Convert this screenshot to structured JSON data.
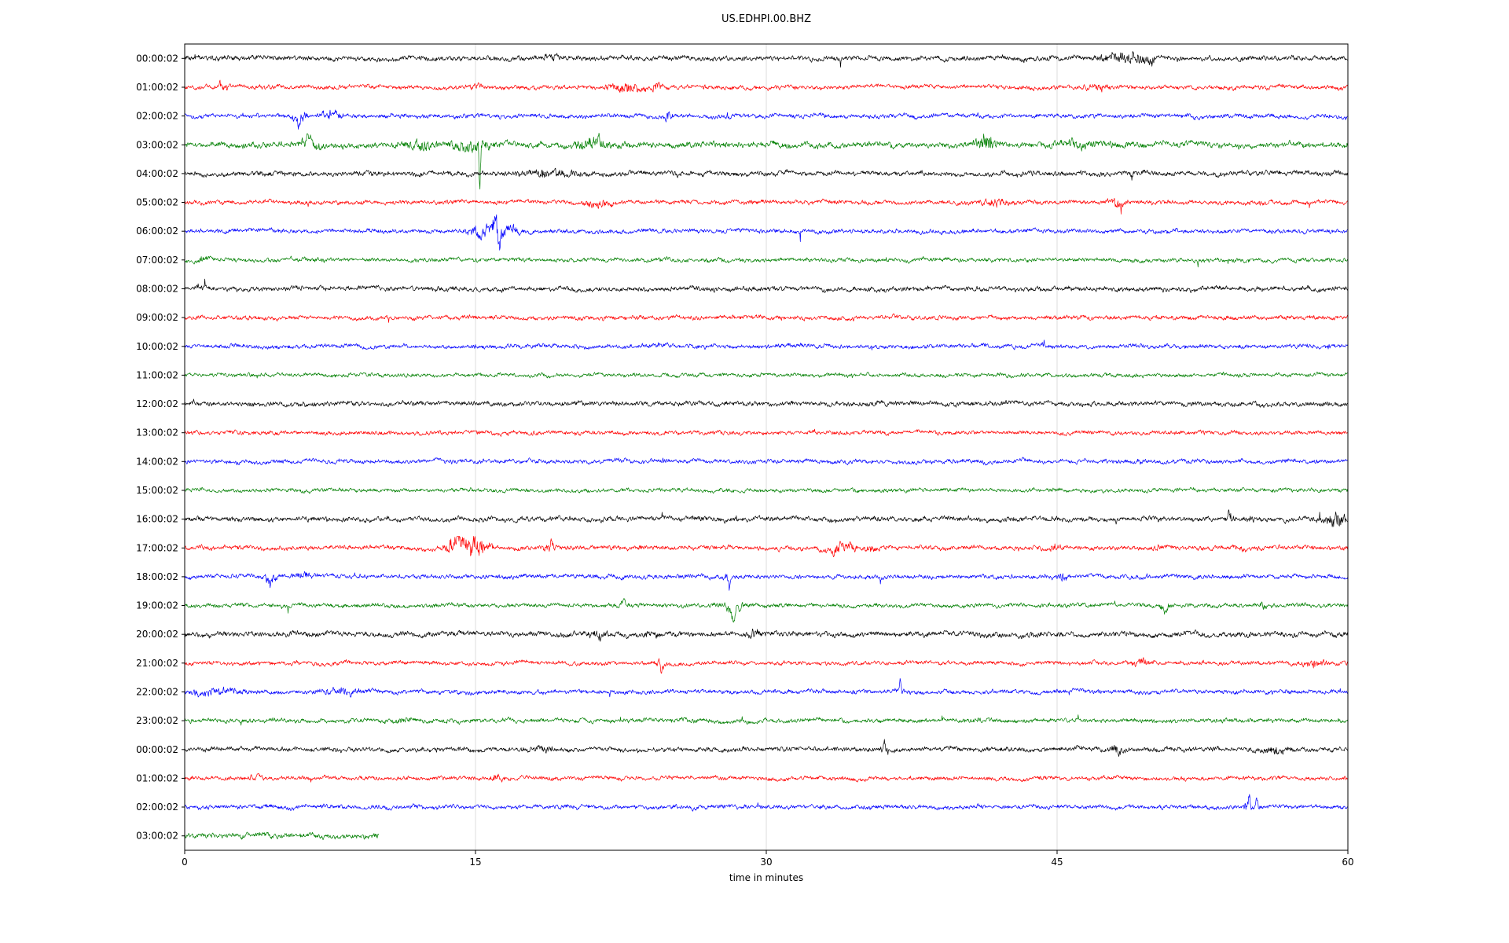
{
  "chart_data": {
    "type": "line",
    "title": "US.EDHPI.00.BHZ",
    "xlabel": "time in minutes",
    "xlim": [
      0,
      60
    ],
    "x_ticks": [
      0,
      15,
      30,
      45,
      60
    ],
    "grid": "vertical-at-interior-ticks",
    "legend": "none",
    "color_cycle": [
      "#000000",
      "#ff0000",
      "#0000ff",
      "#007f00"
    ],
    "rows": [
      {
        "label": "00:00:02",
        "color": "#000000",
        "end_min": 60,
        "base_amp": 1.15,
        "events": [
          {
            "t": 19.0,
            "dur": 0.5,
            "gain": 1.8
          },
          {
            "t": 48.4,
            "dur": 1.4,
            "gain": 3.2
          },
          {
            "t": 49.8,
            "dur": 0.6,
            "gain": 2.2
          }
        ]
      },
      {
        "label": "01:00:02",
        "color": "#ff0000",
        "end_min": 60,
        "base_amp": 1.0,
        "events": [
          {
            "t": 2.0,
            "dur": 0.35,
            "gain": 3.0
          },
          {
            "t": 15.0,
            "dur": 0.3,
            "gain": 2.6
          },
          {
            "t": 22.9,
            "dur": 1.2,
            "gain": 2.6
          },
          {
            "t": 24.3,
            "dur": 0.5,
            "gain": 2.4
          },
          {
            "t": 47.0,
            "dur": 0.8,
            "gain": 2.2
          }
        ]
      },
      {
        "label": "02:00:02",
        "color": "#0000ff",
        "end_min": 60,
        "base_amp": 1.0,
        "events": [
          {
            "t": 5.9,
            "dur": 0.5,
            "gain": 3.5,
            "pulse": -10
          },
          {
            "t": 7.6,
            "dur": 0.6,
            "gain": 2.6
          },
          {
            "t": 24.9,
            "dur": 0.3,
            "gain": 2.4
          }
        ]
      },
      {
        "label": "03:00:02",
        "color": "#007f00",
        "end_min": 60,
        "base_amp": 1.35,
        "events": [
          {
            "t": 6.4,
            "dur": 0.7,
            "gain": 2.8,
            "pulse": 8
          },
          {
            "t": 12.1,
            "dur": 0.9,
            "gain": 2.2
          },
          {
            "t": 14.6,
            "dur": 1.6,
            "gain": 2.4
          },
          {
            "t": 15.22,
            "dur": 0.2,
            "gain": 3.0,
            "pulse": -52
          },
          {
            "t": 21.0,
            "dur": 1.1,
            "gain": 2.8
          },
          {
            "t": 41.4,
            "dur": 0.7,
            "gain": 3.5,
            "pulse": 10
          },
          {
            "t": 46.0,
            "dur": 2.0,
            "gain": 1.6
          }
        ]
      },
      {
        "label": "04:00:02",
        "color": "#000000",
        "end_min": 60,
        "base_amp": 1.15,
        "events": [
          {
            "t": 18.6,
            "dur": 1.4,
            "gain": 2.2
          },
          {
            "t": 19.9,
            "dur": 0.7,
            "gain": 1.9
          }
        ]
      },
      {
        "label": "05:00:02",
        "color": "#ff0000",
        "end_min": 60,
        "base_amp": 1.0,
        "events": [
          {
            "t": 21.4,
            "dur": 0.8,
            "gain": 2.4
          },
          {
            "t": 41.9,
            "dur": 1.1,
            "gain": 2.2
          },
          {
            "t": 48.1,
            "dur": 0.6,
            "gain": 2.4
          }
        ]
      },
      {
        "label": "06:00:02",
        "color": "#0000ff",
        "end_min": 60,
        "base_amp": 1.0,
        "events": [
          {
            "t": 15.4,
            "dur": 1.0,
            "gain": 3.5
          },
          {
            "t": 16.05,
            "dur": 0.25,
            "gain": 4.0,
            "pulse": 12
          },
          {
            "t": 16.2,
            "dur": 0.3,
            "gain": 4.0,
            "pulse": -30
          },
          {
            "t": 16.8,
            "dur": 0.8,
            "gain": 2.5
          }
        ]
      },
      {
        "label": "07:00:02",
        "color": "#007f00",
        "end_min": 60,
        "base_amp": 0.95,
        "events": [
          {
            "t": 1.0,
            "dur": 0.5,
            "gain": 1.8
          }
        ]
      },
      {
        "label": "08:00:02",
        "color": "#000000",
        "end_min": 60,
        "base_amp": 1.1,
        "events": []
      },
      {
        "label": "09:00:02",
        "color": "#ff0000",
        "end_min": 60,
        "base_amp": 1.0,
        "events": []
      },
      {
        "label": "10:00:02",
        "color": "#0000ff",
        "end_min": 60,
        "base_amp": 1.0,
        "events": []
      },
      {
        "label": "11:00:02",
        "color": "#007f00",
        "end_min": 60,
        "base_amp": 0.9,
        "events": []
      },
      {
        "label": "12:00:02",
        "color": "#000000",
        "end_min": 60,
        "base_amp": 1.1,
        "events": []
      },
      {
        "label": "13:00:02",
        "color": "#ff0000",
        "end_min": 60,
        "base_amp": 0.95,
        "events": []
      },
      {
        "label": "14:00:02",
        "color": "#0000ff",
        "end_min": 60,
        "base_amp": 1.0,
        "events": []
      },
      {
        "label": "15:00:02",
        "color": "#007f00",
        "end_min": 60,
        "base_amp": 0.9,
        "events": []
      },
      {
        "label": "16:00:02",
        "color": "#000000",
        "end_min": 60,
        "base_amp": 1.15,
        "events": [
          {
            "t": 53.9,
            "dur": 0.3,
            "gain": 2.6,
            "pulse": 9
          },
          {
            "t": 54.9,
            "dur": 0.3,
            "gain": 2.0
          },
          {
            "t": 59.4,
            "dur": 0.7,
            "gain": 3.5
          }
        ]
      },
      {
        "label": "17:00:02",
        "color": "#ff0000",
        "end_min": 60,
        "base_amp": 1.05,
        "events": [
          {
            "t": 13.9,
            "dur": 0.5,
            "gain": 4.5
          },
          {
            "t": 14.9,
            "dur": 0.9,
            "gain": 5.5
          },
          {
            "t": 18.9,
            "dur": 0.4,
            "gain": 2.8
          },
          {
            "t": 33.9,
            "dur": 1.0,
            "gain": 2.8
          },
          {
            "t": 35.3,
            "dur": 0.5,
            "gain": 2.0
          },
          {
            "t": 44.9,
            "dur": 0.4,
            "gain": 2.0
          },
          {
            "t": 50.3,
            "dur": 0.3,
            "gain": 2.0
          },
          {
            "t": 54.6,
            "dur": 0.3,
            "gain": 1.9
          }
        ]
      },
      {
        "label": "18:00:02",
        "color": "#0000ff",
        "end_min": 60,
        "base_amp": 1.0,
        "events": [
          {
            "t": 4.4,
            "dur": 0.4,
            "gain": 3.0,
            "pulse": -9
          },
          {
            "t": 6.1,
            "dur": 0.8,
            "gain": 2.0
          },
          {
            "t": 28.1,
            "dur": 0.3,
            "gain": 2.8,
            "pulse": -8
          },
          {
            "t": 45.4,
            "dur": 0.5,
            "gain": 2.4
          }
        ]
      },
      {
        "label": "19:00:02",
        "color": "#007f00",
        "end_min": 60,
        "base_amp": 0.95,
        "events": [
          {
            "t": 22.6,
            "dur": 0.5,
            "gain": 1.9
          },
          {
            "t": 28.3,
            "dur": 0.7,
            "gain": 3.2,
            "pulse": -14
          },
          {
            "t": 50.6,
            "dur": 0.4,
            "gain": 2.4,
            "pulse": -7
          },
          {
            "t": 55.6,
            "dur": 0.3,
            "gain": 1.9
          }
        ]
      },
      {
        "label": "20:00:02",
        "color": "#000000",
        "end_min": 60,
        "base_amp": 1.2,
        "events": [
          {
            "t": 21.3,
            "dur": 0.6,
            "gain": 2.2
          },
          {
            "t": 24.1,
            "dur": 0.5,
            "gain": 2.0
          },
          {
            "t": 29.3,
            "dur": 0.5,
            "gain": 2.2
          }
        ]
      },
      {
        "label": "21:00:02",
        "color": "#ff0000",
        "end_min": 60,
        "base_amp": 0.95,
        "events": [
          {
            "t": 24.6,
            "dur": 0.3,
            "gain": 2.8,
            "pulse": -8
          },
          {
            "t": 49.4,
            "dur": 0.6,
            "gain": 2.2
          },
          {
            "t": 58.3,
            "dur": 0.8,
            "gain": 2.4
          }
        ]
      },
      {
        "label": "22:00:02",
        "color": "#0000ff",
        "end_min": 60,
        "base_amp": 1.0,
        "events": [
          {
            "t": 1.6,
            "dur": 2.4,
            "gain": 2.0
          },
          {
            "t": 8.1,
            "dur": 1.6,
            "gain": 1.9
          },
          {
            "t": 36.9,
            "dur": 0.25,
            "gain": 2.6,
            "pulse": 14
          }
        ]
      },
      {
        "label": "23:00:02",
        "color": "#007f00",
        "end_min": 60,
        "base_amp": 1.0,
        "events": [
          {
            "t": 11.0,
            "dur": 1.0,
            "gain": 1.5
          }
        ]
      },
      {
        "label": "00:00:02",
        "color": "#000000",
        "end_min": 60,
        "base_amp": 1.1,
        "events": [
          {
            "t": 18.6,
            "dur": 0.6,
            "gain": 1.8
          },
          {
            "t": 36.1,
            "dur": 0.3,
            "gain": 2.4,
            "pulse": 7
          },
          {
            "t": 48.1,
            "dur": 0.4,
            "gain": 2.4
          },
          {
            "t": 56.1,
            "dur": 0.8,
            "gain": 2.2
          }
        ]
      },
      {
        "label": "01:00:02",
        "color": "#ff0000",
        "end_min": 60,
        "base_amp": 0.95,
        "events": [
          {
            "t": 3.6,
            "dur": 0.8,
            "gain": 1.8
          },
          {
            "t": 16.1,
            "dur": 0.4,
            "gain": 3.0
          }
        ]
      },
      {
        "label": "02:00:02",
        "color": "#0000ff",
        "end_min": 60,
        "base_amp": 1.0,
        "events": [
          {
            "t": 54.9,
            "dur": 0.3,
            "gain": 3.0,
            "pulse": 16
          },
          {
            "t": 55.3,
            "dur": 0.25,
            "gain": 2.0,
            "pulse": 8
          }
        ]
      },
      {
        "label": "03:00:02",
        "color": "#007f00",
        "end_min": 10,
        "base_amp": 1.2,
        "events": []
      }
    ]
  }
}
